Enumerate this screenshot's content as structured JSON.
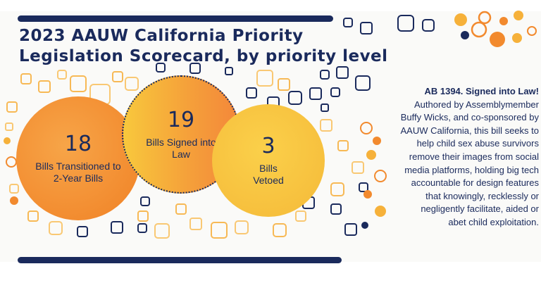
{
  "title": {
    "line1": "2023 AAUW California Priority",
    "line2": "Legislation Scorecard, by priority level"
  },
  "stats": [
    {
      "number": "18",
      "label_line1": "Bills Transitioned to",
      "label_line2": "2-Year Bills"
    },
    {
      "number": "19",
      "label_line1": "Bills Signed into",
      "label_line2": "Law"
    },
    {
      "number": "3",
      "label_line1": "Bills",
      "label_line2": "Vetoed"
    }
  ],
  "sidebar": {
    "heading": "AB 1394. Signed into Law!",
    "lines": [
      "Authored by Assemblymember",
      "Buffy Wicks, and co-sponsored by",
      "AAUW California, this bill seeks to",
      "help child sex abuse survivors",
      "remove their images from social",
      "media platforms, holding big tech",
      "accountable for design features",
      "that knowingly, recklessly or",
      "negligently facilitate, aided or",
      "abet child exploitation."
    ]
  },
  "colors": {
    "navy": "#1a2a5c",
    "orange": "#f28a2e",
    "yellow": "#f6be3c",
    "background": "#fafaf8"
  }
}
